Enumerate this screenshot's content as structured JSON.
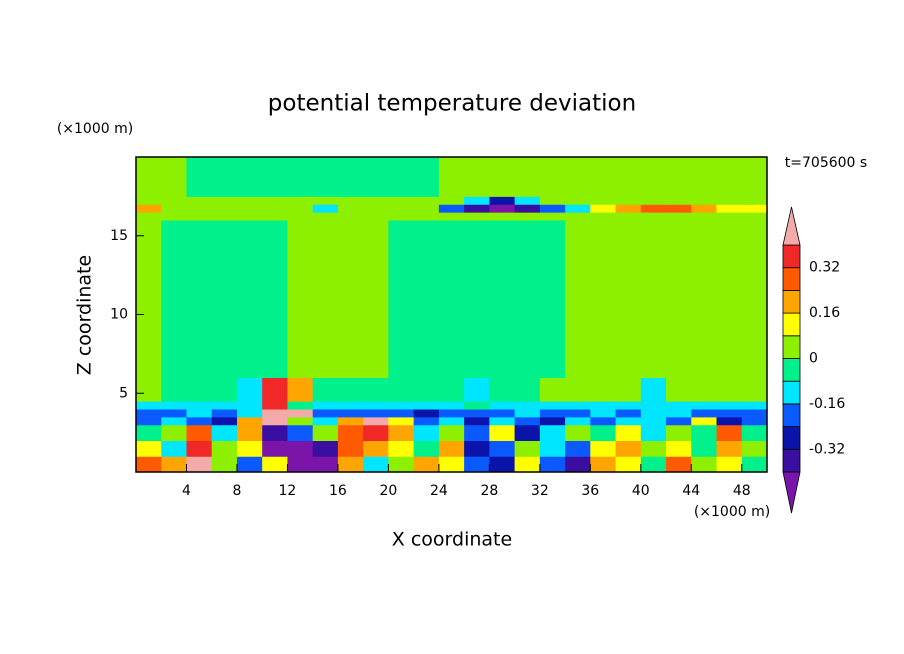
{
  "chart_data": {
    "type": "contour",
    "title": "potential temperature deviation",
    "xlabel": "X coordinate",
    "ylabel": "Z coordinate",
    "x_unit": "(×1000 m)",
    "y_unit": "(×1000 m)",
    "annotation": "t=705600 s",
    "xlim": [
      0,
      50
    ],
    "ylim": [
      0,
      20
    ],
    "xticks": [
      4,
      8,
      12,
      16,
      20,
      24,
      28,
      32,
      36,
      40,
      44,
      48
    ],
    "yticks": [
      5,
      10,
      15
    ],
    "xbins": [
      0,
      2,
      4,
      6,
      8,
      10,
      12,
      14,
      16,
      18,
      20,
      22,
      24,
      26,
      28,
      30,
      32,
      34,
      36,
      38,
      40,
      42,
      44,
      46,
      48,
      50
    ],
    "ybins": [
      0,
      1,
      2,
      3,
      3.5,
      4,
      4.5,
      6,
      16,
      16.5,
      17,
      17.5,
      20
    ],
    "z": [
      [
        0.28,
        0.2,
        0.45,
        0.04,
        -0.2,
        0.12,
        -0.45,
        -0.45,
        0.2,
        -0.12,
        0.04,
        0.2,
        0.12,
        -0.2,
        -0.28,
        0.12,
        -0.2,
        -0.36,
        0.2,
        0.12,
        -0.04,
        0.28,
        0.04,
        0.12,
        -0.04
      ],
      [
        0.12,
        -0.12,
        0.36,
        0.04,
        0.12,
        -0.45,
        -0.45,
        -0.36,
        0.28,
        0.2,
        0.12,
        -0.04,
        0.2,
        -0.28,
        -0.2,
        0.04,
        -0.12,
        -0.2,
        0.12,
        0.2,
        0.04,
        0.12,
        -0.04,
        0.2,
        0.04
      ],
      [
        -0.04,
        0.04,
        0.28,
        -0.12,
        0.2,
        -0.36,
        -0.2,
        0.04,
        0.28,
        0.36,
        0.2,
        -0.12,
        0.04,
        -0.2,
        0.12,
        -0.28,
        -0.12,
        0.04,
        -0.04,
        0.12,
        -0.12,
        0.04,
        -0.04,
        0.28,
        -0.04
      ],
      [
        -0.2,
        -0.12,
        -0.2,
        -0.28,
        0.2,
        0.45,
        0.04,
        -0.12,
        0.2,
        0.45,
        0.12,
        -0.2,
        -0.12,
        -0.28,
        -0.12,
        -0.2,
        -0.28,
        -0.12,
        -0.2,
        -0.12,
        -0.12,
        -0.2,
        0.12,
        -0.28,
        -0.2
      ],
      [
        -0.2,
        -0.2,
        -0.12,
        -0.2,
        -0.12,
        0.45,
        0.45,
        -0.2,
        -0.2,
        -0.2,
        -0.2,
        -0.28,
        -0.2,
        -0.2,
        -0.2,
        -0.12,
        -0.2,
        -0.2,
        -0.12,
        -0.2,
        -0.12,
        -0.12,
        -0.2,
        -0.2,
        -0.2
      ],
      [
        -0.12,
        -0.12,
        -0.12,
        -0.12,
        -0.12,
        0.36,
        -0.04,
        -0.12,
        -0.12,
        -0.12,
        -0.12,
        -0.12,
        -0.12,
        -0.04,
        -0.12,
        -0.12,
        -0.12,
        -0.12,
        -0.12,
        -0.12,
        -0.12,
        -0.12,
        -0.12,
        -0.12,
        -0.12
      ],
      [
        0.04,
        -0.04,
        -0.04,
        -0.04,
        -0.12,
        0.36,
        0.2,
        -0.04,
        -0.04,
        -0.04,
        -0.04,
        -0.04,
        -0.04,
        -0.12,
        -0.04,
        -0.04,
        0.04,
        0.04,
        0.04,
        0.04,
        -0.12,
        0.04,
        0.04,
        0.04,
        0.04
      ],
      [
        0.04,
        -0.04,
        -0.04,
        -0.04,
        -0.04,
        -0.04,
        0.04,
        0.04,
        0.04,
        0.04,
        -0.04,
        -0.04,
        -0.04,
        -0.04,
        -0.04,
        -0.04,
        -0.04,
        0.04,
        0.04,
        0.04,
        0.04,
        0.04,
        0.04,
        0.04,
        0.04
      ],
      [
        0.04,
        0.04,
        0.04,
        0.04,
        0.04,
        0.04,
        0.04,
        0.04,
        0.04,
        0.04,
        0.04,
        0.04,
        0.04,
        0.04,
        0.04,
        0.04,
        0.04,
        0.04,
        0.04,
        0.04,
        0.04,
        0.04,
        0.04,
        0.04,
        0.04
      ],
      [
        0.2,
        0.04,
        0.04,
        0.04,
        0.04,
        0.04,
        0.04,
        -0.12,
        0.04,
        0.04,
        0.04,
        0.04,
        -0.2,
        -0.36,
        -0.45,
        -0.36,
        -0.2,
        -0.12,
        0.12,
        0.2,
        0.28,
        0.28,
        0.2,
        0.12,
        0.12
      ],
      [
        0.04,
        0.04,
        0.04,
        0.04,
        0.04,
        0.04,
        0.04,
        0.04,
        0.04,
        0.04,
        0.04,
        0.04,
        0.04,
        -0.12,
        -0.28,
        -0.12,
        0.04,
        0.04,
        0.04,
        0.04,
        0.04,
        0.04,
        0.04,
        0.04,
        0.04
      ],
      [
        0.04,
        0.04,
        -0.04,
        -0.04,
        -0.04,
        -0.04,
        -0.04,
        -0.04,
        -0.04,
        -0.04,
        -0.04,
        -0.04,
        0.04,
        0.04,
        0.04,
        0.04,
        0.04,
        0.04,
        0.04,
        0.04,
        0.04,
        0.04,
        0.04,
        0.04,
        0.04
      ]
    ],
    "levels": [
      -0.4,
      -0.32,
      -0.24,
      -0.16,
      -0.08,
      0,
      0.08,
      0.16,
      0.24,
      0.32,
      0.4
    ],
    "colors": [
      "#7b14a8",
      "#3a0ea0",
      "#0a14aa",
      "#0a5aff",
      "#00e6ff",
      "#00f08c",
      "#8cf000",
      "#ffff00",
      "#ffa500",
      "#ff5a00",
      "#f02828",
      "#f5aaaa"
    ],
    "colorbar_ticks": [
      -0.32,
      -0.16,
      0,
      0.16,
      0.32
    ]
  }
}
